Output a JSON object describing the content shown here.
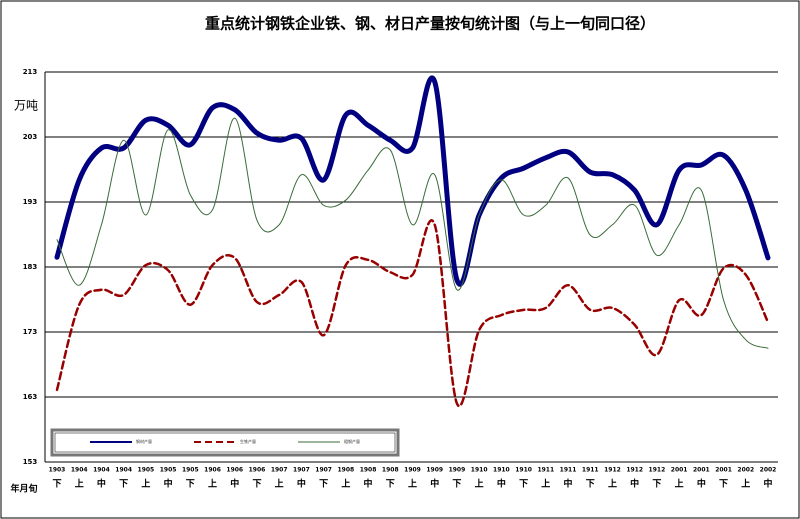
{
  "chart_data": {
    "type": "line",
    "title": "重点统计钢铁企业铁、钢、材日产量按旬统计图（与上一旬同口径）",
    "y_label": "万吨",
    "x_label": "年月旬",
    "categories": [
      [
        "1903",
        "下"
      ],
      [
        "1904",
        "上"
      ],
      [
        "1904",
        "中"
      ],
      [
        "1904",
        "下"
      ],
      [
        "1905",
        "上"
      ],
      [
        "1905",
        "中"
      ],
      [
        "1905",
        "下"
      ],
      [
        "1906",
        "上"
      ],
      [
        "1906",
        "中"
      ],
      [
        "1906",
        "下"
      ],
      [
        "1907",
        "上"
      ],
      [
        "1907",
        "中"
      ],
      [
        "1907",
        "下"
      ],
      [
        "1908",
        "上"
      ],
      [
        "1908",
        "中"
      ],
      [
        "1908",
        "下"
      ],
      [
        "1909",
        "上"
      ],
      [
        "1909",
        "中"
      ],
      [
        "1909",
        "下"
      ],
      [
        "1910",
        "上"
      ],
      [
        "1910",
        "中"
      ],
      [
        "1910",
        "下"
      ],
      [
        "1911",
        "上"
      ],
      [
        "1911",
        "中"
      ],
      [
        "1911",
        "下"
      ],
      [
        "1912",
        "上"
      ],
      [
        "1912",
        "中"
      ],
      [
        "1912",
        "下"
      ],
      [
        "2001",
        "上"
      ],
      [
        "2001",
        "中"
      ],
      [
        "2001",
        "下"
      ],
      [
        "2002",
        "上"
      ],
      [
        "2002",
        "中"
      ]
    ],
    "series": [
      {
        "name": "钢材产量",
        "color": "#000080",
        "style": "solid-thick",
        "values": [
          184.5,
          196.4,
          201.3,
          201.3,
          205.6,
          204.8,
          201.8,
          207.5,
          207.2,
          203.6,
          202.5,
          202.8,
          196.4,
          206.4,
          204.8,
          202.5,
          201.3,
          211.5,
          181,
          191,
          196.7,
          198.2,
          199.8,
          200.7,
          197.6,
          197.2,
          194.8,
          189.5,
          197.9,
          198.7,
          200.2,
          194.8,
          184.4
        ]
      },
      {
        "name": "生铁产量",
        "color": "#990000",
        "style": "dashed",
        "values": [
          164.1,
          177.2,
          179.5,
          178.7,
          183.3,
          182.5,
          177.2,
          183.3,
          184.4,
          177.6,
          178.7,
          180.7,
          172.5,
          183.3,
          184.1,
          182.2,
          181.8,
          189.5,
          162,
          173.3,
          175.6,
          176.4,
          176.7,
          180.2,
          176.4,
          176.7,
          174.1,
          169.5,
          177.9,
          175.6,
          182.8,
          181.8,
          174.5
        ]
      },
      {
        "name": "粗钢产量",
        "color": "#3a6b3a",
        "style": "thin",
        "values": [
          187.2,
          180.2,
          189.5,
          202.5,
          191,
          204.1,
          194.1,
          191.8,
          205.9,
          190.2,
          189.5,
          197.2,
          192.5,
          193.3,
          197.9,
          201,
          189.5,
          197.2,
          179.5,
          191,
          196.4,
          191,
          192.5,
          196.7,
          187.9,
          189.5,
          192.5,
          184.8,
          189.5,
          194.8,
          177.9,
          171.8,
          170.5
        ]
      }
    ],
    "ylim": [
      153,
      213
    ],
    "yticks": [
      153,
      163,
      173,
      183,
      193,
      203,
      213
    ],
    "grid": true
  }
}
